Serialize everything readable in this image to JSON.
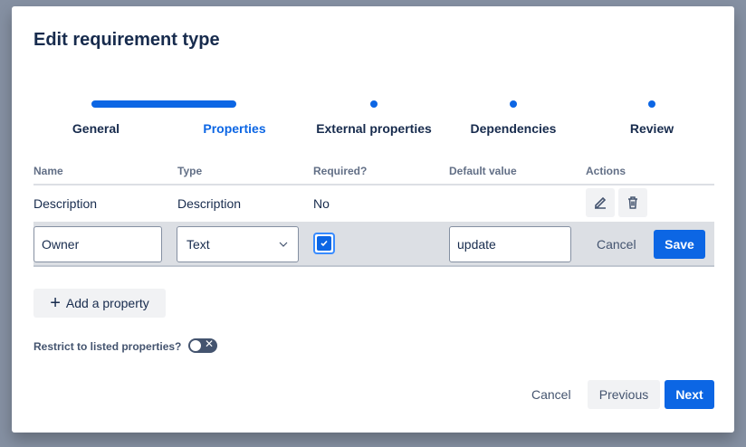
{
  "dialog": {
    "title": "Edit requirement type"
  },
  "steps": [
    {
      "label": "General",
      "state": "complete"
    },
    {
      "label": "Properties",
      "state": "current"
    },
    {
      "label": "External properties",
      "state": "upcoming"
    },
    {
      "label": "Dependencies",
      "state": "upcoming"
    },
    {
      "label": "Review",
      "state": "upcoming"
    }
  ],
  "table": {
    "headers": [
      "Name",
      "Type",
      "Required?",
      "Default value",
      "Actions"
    ],
    "rows": [
      {
        "name": "Description",
        "type": "Description",
        "required": "No",
        "default": ""
      }
    ],
    "edit_row": {
      "name": "Owner",
      "type": "Text",
      "required": true,
      "default": "update",
      "cancel": "Cancel",
      "save": "Save"
    }
  },
  "add_property": "Add a property",
  "restrict": {
    "label": "Restrict to listed properties?",
    "enabled": false
  },
  "footer": {
    "cancel": "Cancel",
    "previous": "Previous",
    "next": "Next"
  },
  "colors": {
    "accent": "#0c66e4",
    "text": "#172b4d",
    "overlay": "#8590a2"
  }
}
